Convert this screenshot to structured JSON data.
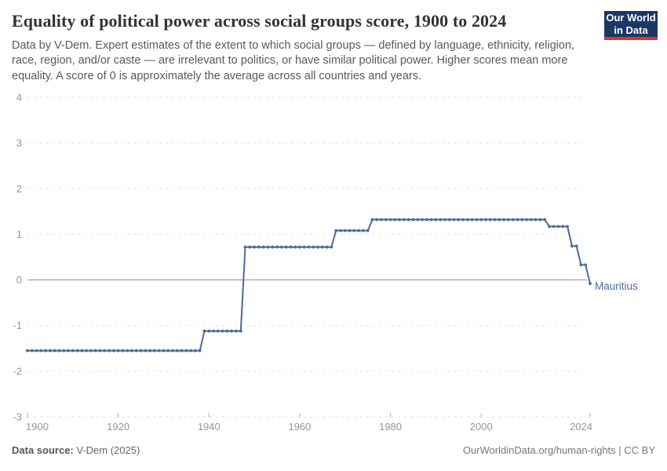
{
  "header": {
    "title": "Equality of political power across social groups score, 1900 to 2024",
    "subtitle": "Data by V-Dem. Expert estimates of the extent to which social groups — defined by language, ethnicity, religion, race, region, and/or caste — are irrelevant to politics, or have similar political power. Higher scores mean more equality. A score of 0 is approximately the average across all countries and years.",
    "logo": {
      "line1": "Our World",
      "line2": "in Data",
      "bg_color": "#1a3866",
      "accent_color": "#dc352c"
    }
  },
  "chart_data": {
    "type": "line",
    "title": "Equality of political power across social groups score, 1900 to 2024",
    "xlabel": "",
    "ylabel": "",
    "x_range": [
      1900,
      2024
    ],
    "y_range": [
      -3,
      4
    ],
    "x_ticks": [
      1900,
      1920,
      1940,
      1960,
      1980,
      2000,
      2024
    ],
    "y_ticks": [
      4,
      3,
      2,
      1,
      0,
      -1,
      -2,
      -3
    ],
    "grid": "dashed horizontal gridlines, solid zero line, legend as end-of-line label",
    "colors": {
      "series": "#4C6A9C",
      "gridline": "#e2e2e2",
      "zero_line": "#8f8f8f",
      "axis_text": "#969696",
      "tick_mark": "#b5b5b5"
    },
    "series": [
      {
        "name": "Mauritius",
        "color": "#4C6A9C",
        "step_segments": [
          {
            "from": 1900,
            "to": 1938,
            "value": -1.55
          },
          {
            "from": 1939,
            "to": 1947,
            "value": -1.12
          },
          {
            "from": 1948,
            "to": 1967,
            "value": 0.72
          },
          {
            "from": 1968,
            "to": 1975,
            "value": 1.08
          },
          {
            "from": 1976,
            "to": 2014,
            "value": 1.32
          },
          {
            "from": 2015,
            "to": 2019,
            "value": 1.17
          },
          {
            "from": 2020,
            "to": 2021,
            "value": 0.74
          },
          {
            "from": 2022,
            "to": 2023,
            "value": 0.33
          },
          {
            "from": 2024,
            "to": 2024,
            "value": -0.08
          }
        ]
      }
    ]
  },
  "footer": {
    "source_label": "Data source:",
    "source_value": "V-Dem (2025)",
    "link": "OurWorldinData.org/human-rights | CC BY"
  }
}
